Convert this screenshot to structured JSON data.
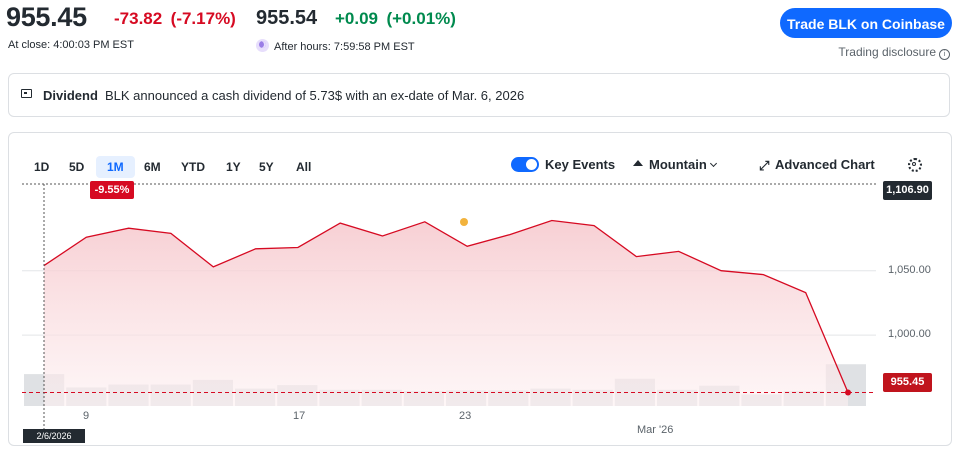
{
  "quote": {
    "price": "955.45",
    "change": "-73.82",
    "change_pct": "(-7.17%)",
    "close_label": "At close: 4:00:03 PM EST",
    "after_price": "955.54",
    "after_change": "+0.09",
    "after_change_pct": "(+0.01%)",
    "after_label": "After hours: 7:59:58 PM EST"
  },
  "trade_button": "Trade BLK on Coinbase",
  "disclosure": "Trading disclosure",
  "dividend": {
    "label": "Dividend",
    "text": "BLK announced a cash dividend of 5.73$ with an ex-date of Mar. 6, 2026"
  },
  "toolbar": {
    "ranges": [
      "1D",
      "5D",
      "1M",
      "6M",
      "YTD",
      "1Y",
      "5Y",
      "All"
    ],
    "active_range": "1M",
    "key_events_label": "Key Events",
    "key_events_on": true,
    "chart_type_label": "Mountain",
    "advanced_label": "Advanced Chart"
  },
  "chart_data": {
    "type": "area",
    "y_ticks": [
      "1,050.00",
      "1,000.00"
    ],
    "y_tick_values": [
      1050,
      1000
    ],
    "ylim": [
      945,
      1115
    ],
    "x_ticks": [
      "9",
      "17",
      "23",
      "Mar '26"
    ],
    "high_tag": "1,106.90",
    "last_tag": "955.45",
    "hover_date": "2/6/2026",
    "hover_pct": "-9.55%",
    "series": [
      {
        "values": [
          1054,
          1076,
          1083,
          1079,
          1053,
          1067,
          1068,
          1087,
          1077,
          1088,
          1069,
          1078,
          1089,
          1085,
          1061,
          1065,
          1050,
          1047,
          1033,
          955.45
        ]
      }
    ],
    "volume": [
      0.55,
      0.32,
      0.37,
      0.37,
      0.45,
      0.3,
      0.36,
      0.28,
      0.28,
      0.26,
      0.27,
      0.27,
      0.3,
      0.28,
      0.47,
      0.28,
      0.35,
      0.2,
      0.26,
      0.72
    ],
    "colors": {
      "line": "#d60a22",
      "fill": "#f9d3d6",
      "volume": "#dfe1e4",
      "event": "#f2b33d"
    }
  }
}
